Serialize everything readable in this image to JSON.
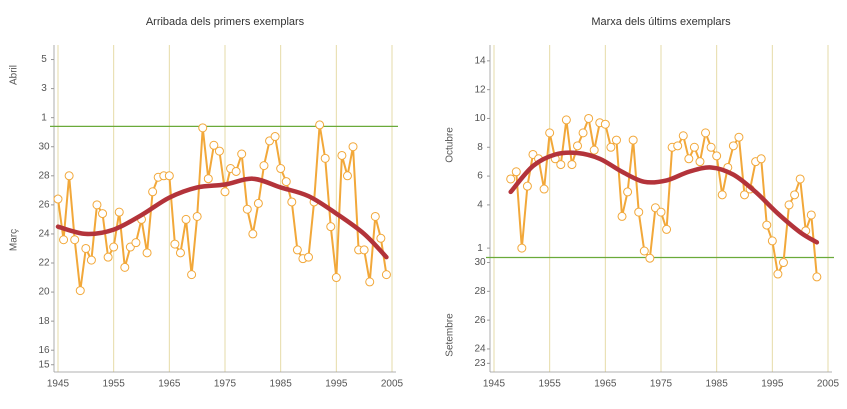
{
  "chart_data": [
    {
      "type": "line",
      "title": "Arribada dels primers exemplars",
      "ylabels": [
        "Abril",
        "Març"
      ],
      "xlim": [
        1945,
        2005
      ],
      "xticks": [
        1945,
        1955,
        1965,
        1975,
        1985,
        1995,
        2005
      ],
      "ylim": [
        14.5,
        37
      ],
      "yticks": [
        {
          "value": 36,
          "label": "5"
        },
        {
          "value": 34,
          "label": "3"
        },
        {
          "value": 32,
          "label": "1"
        },
        30,
        28,
        26,
        24,
        22,
        20,
        18,
        16,
        15
      ],
      "reference_line": 31.4,
      "reference_color": "#6aaa3a",
      "grid": true,
      "series": [
        {
          "color": "#f2a83a",
          "x": [
            1945,
            1946,
            1947,
            1948,
            1949,
            1950,
            1951,
            1952,
            1953,
            1954,
            1955,
            1956,
            1957,
            1958,
            1959,
            1960,
            1961,
            1962,
            1963,
            1964,
            1965,
            1966,
            1967,
            1968,
            1969,
            1970,
            1971,
            1972,
            1973,
            1974,
            1975,
            1976,
            1977,
            1978,
            1979,
            1980,
            1981,
            1982,
            1983,
            1984,
            1985,
            1986,
            1987,
            1988,
            1989,
            1990,
            1991,
            1992,
            1993,
            1994,
            1995,
            1996,
            1997,
            1998,
            1999,
            2000,
            2001,
            2002,
            2003,
            2004
          ],
          "values": [
            26.4,
            23.6,
            28,
            23.6,
            20.1,
            23,
            22.2,
            26,
            25.4,
            22.4,
            23.1,
            25.5,
            21.7,
            23.1,
            23.4,
            25,
            22.7,
            26.9,
            27.9,
            28,
            28,
            23.3,
            22.7,
            25,
            21.2,
            25.2,
            31.3,
            27.8,
            30.1,
            29.7,
            26.9,
            28.5,
            28.3,
            29.5,
            25.7,
            24,
            26.1,
            28.7,
            30.4,
            30.7,
            28.5,
            27.6,
            26.2,
            22.9,
            22.3,
            22.4,
            26.2,
            31.5,
            29.2,
            24.5,
            21,
            29.4,
            28,
            30,
            22.9,
            22.9,
            20.7,
            25.2,
            23.7,
            21.2
          ],
          "markers": true
        },
        {
          "color": "#b3333a",
          "x": [
            1945,
            1950,
            1955,
            1960,
            1965,
            1970,
            1975,
            1980,
            1985,
            1990,
            1995,
            2000,
            2004
          ],
          "values": [
            24.5,
            24,
            24.3,
            25.3,
            26.5,
            27.2,
            27.4,
            27.8,
            27.2,
            26.6,
            25.4,
            24,
            22.4
          ],
          "markers": false
        }
      ]
    },
    {
      "type": "line",
      "title": "Marxa dels últims exemplars",
      "ylabels": [
        "Octubre",
        "Setembre"
      ],
      "xlim": [
        1945,
        2005
      ],
      "xticks": [
        1945,
        1955,
        1965,
        1975,
        1985,
        1995,
        2005
      ],
      "ylim": [
        22.4,
        45.1
      ],
      "yticks": [
        {
          "value": 44,
          "label": "14"
        },
        {
          "value": 42,
          "label": "12"
        },
        {
          "value": 40,
          "label": "10"
        },
        {
          "value": 38,
          "label": "8"
        },
        {
          "value": 36,
          "label": "6"
        },
        {
          "value": 34,
          "label": "4"
        },
        {
          "value": 31,
          "label": "1"
        },
        30,
        28,
        26,
        24,
        23
      ],
      "reference_line": 30.35,
      "reference_color": "#6aaa3a",
      "grid": true,
      "series": [
        {
          "color": "#f2a83a",
          "x": [
            1948,
            1949,
            1950,
            1951,
            1952,
            1953,
            1954,
            1955,
            1956,
            1957,
            1958,
            1959,
            1960,
            1961,
            1962,
            1963,
            1964,
            1965,
            1966,
            1967,
            1968,
            1969,
            1970,
            1971,
            1972,
            1973,
            1974,
            1975,
            1976,
            1977,
            1978,
            1979,
            1980,
            1981,
            1982,
            1983,
            1984,
            1985,
            1986,
            1987,
            1988,
            1989,
            1990,
            1991,
            1992,
            1993,
            1994,
            1995,
            1996,
            1997,
            1998,
            1999,
            2000,
            2001,
            2002,
            2003
          ],
          "values": [
            35.8,
            36.3,
            31,
            35.3,
            37.5,
            37.2,
            35.1,
            39,
            37.2,
            36.8,
            39.9,
            36.8,
            38.1,
            39,
            40,
            37.8,
            39.7,
            39.6,
            38,
            38.5,
            33.2,
            34.9,
            38.5,
            33.5,
            30.8,
            30.3,
            33.8,
            33.5,
            32.3,
            38,
            38.1,
            38.8,
            37.2,
            38,
            37,
            39,
            38,
            37.4,
            34.7,
            36.6,
            38.1,
            38.7,
            34.7,
            35.1,
            37,
            37.2,
            32.6,
            31.5,
            29.2,
            30,
            34,
            34.7,
            35.8,
            32.2,
            33.3,
            29
          ],
          "markers": true
        },
        {
          "color": "#b3333a",
          "x": [
            1948,
            1952,
            1956,
            1960,
            1964,
            1968,
            1972,
            1976,
            1980,
            1984,
            1988,
            1992,
            1996,
            2000,
            2003
          ],
          "values": [
            34.9,
            36.7,
            37.5,
            37.6,
            37.2,
            36.3,
            35.6,
            35.7,
            36.3,
            36.6,
            36.1,
            34.9,
            33.4,
            32.1,
            31.4
          ],
          "markers": false
        }
      ]
    }
  ]
}
